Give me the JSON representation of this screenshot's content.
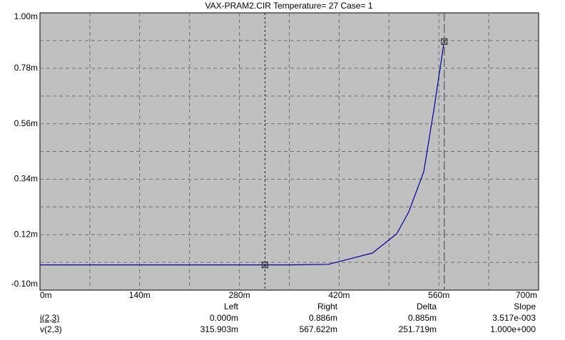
{
  "chart_data": {
    "type": "line",
    "title": "VAX-PRAM2.CIR Temperature= 27 Case= 1",
    "xlim": [
      0,
      700
    ],
    "xticks": [
      {
        "value": 0,
        "label": "0m"
      },
      {
        "value": 140,
        "label": "140m"
      },
      {
        "value": 280,
        "label": "280m"
      },
      {
        "value": 420,
        "label": "420m"
      },
      {
        "value": 560,
        "label": "560m"
      },
      {
        "value": 700,
        "label": "700m"
      }
    ],
    "xminorticks": [
      70,
      210,
      350,
      490,
      630
    ],
    "ylim": [
      -0.1,
      1.0
    ],
    "yticks": [
      {
        "value": -0.1,
        "label": "-0.10m"
      },
      {
        "value": 0.12,
        "label": "0.12m"
      },
      {
        "value": 0.34,
        "label": "0.34m"
      },
      {
        "value": 0.56,
        "label": "0.56m"
      },
      {
        "value": 0.78,
        "label": "0.78m"
      },
      {
        "value": 1.0,
        "label": "1.00m"
      }
    ],
    "yminorticks": [
      0.01,
      0.23,
      0.45,
      0.67,
      0.89
    ],
    "grid": true,
    "background": "#c0c0c0",
    "series": [
      {
        "color": "#0000a0",
        "x": [
          0,
          100,
          200,
          300,
          350,
          404.6,
          466.7,
          500.7,
          517.7,
          538.8,
          553.8,
          566.8
        ],
        "values": [
          0.0,
          0.0,
          0.0,
          0.0,
          0.0,
          0.002,
          0.047,
          0.123,
          0.21,
          0.37,
          0.63,
          0.876
        ]
      }
    ],
    "cursors": [
      {
        "x": 315.903,
        "y": 0.0
      },
      {
        "x": 567.622,
        "y": 0.886
      }
    ],
    "cursor_table": {
      "headers": [
        "Left",
        "Right",
        "Delta",
        "Slope"
      ],
      "rows": [
        {
          "name": "i(2,3)",
          "cells": [
            "0.000m",
            "0.886m",
            "0.885m",
            "3.517e-003"
          ]
        },
        {
          "name": "v(2,3)",
          "cells": [
            "315.903m",
            "567.622m",
            "251.719m",
            "1.000e+000"
          ]
        }
      ]
    }
  }
}
